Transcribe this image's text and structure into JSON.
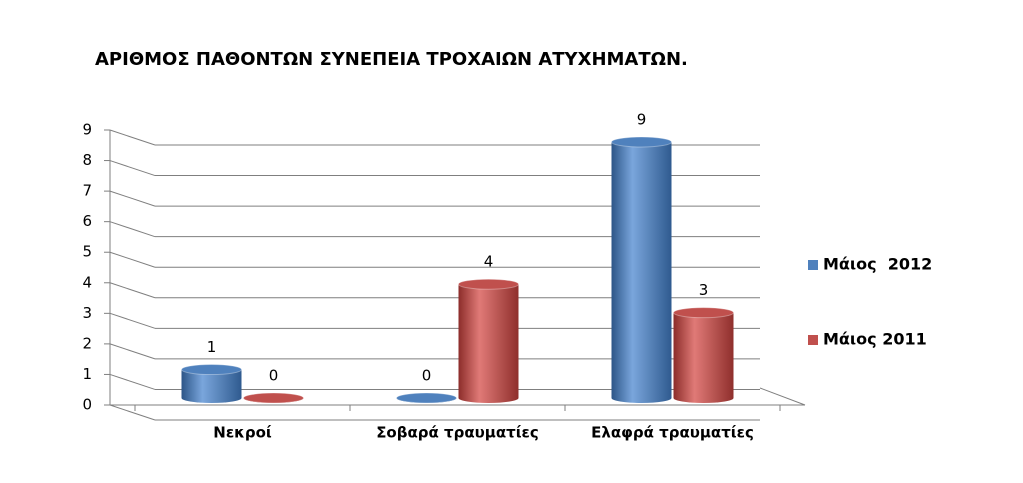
{
  "chart_data": {
    "type": "bar",
    "title": "ΑΡΙΘΜΟΣ ΠΑΘΟΝΤΩΝ ΣΥΝΕΠΕΙΑ ΤΡΟΧΑΙΩΝ ΑΤΥΧΗΜΑΤΩΝ.",
    "categories": [
      "Νεκροί",
      "Σοβαρά τραυματίες",
      "Ελαφρά τραυματίες"
    ],
    "series": [
      {
        "name": "Μάιος  2012",
        "color": "#4f81bd",
        "values": [
          1,
          0,
          9
        ]
      },
      {
        "name": "Μάιος 2011",
        "color": "#c0504d",
        "values": [
          0,
          4,
          3
        ]
      }
    ],
    "ylim": [
      0,
      9
    ],
    "yticks": [
      0,
      1,
      2,
      3,
      4,
      5,
      6,
      7,
      8,
      9
    ],
    "grid": true,
    "legend": "right"
  }
}
